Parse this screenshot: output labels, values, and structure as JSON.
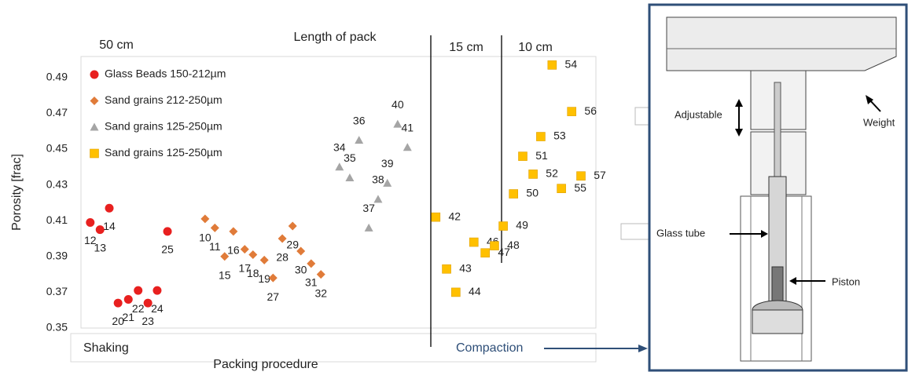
{
  "chart_data": {
    "type": "scatter",
    "title": "Length of pack",
    "group_labels": [
      "50 cm",
      "15 cm",
      "10 cm"
    ],
    "procedures": [
      "Shaking",
      "Compaction"
    ],
    "xlabel": "Packing procedure",
    "ylabel": "Porosity [frac]",
    "xlim": [
      0,
      100
    ],
    "ylim": [
      0.35,
      0.5
    ],
    "yticks": [
      0.35,
      0.37,
      0.39,
      0.41,
      0.43,
      0.45,
      0.47,
      0.49
    ],
    "series": [
      {
        "name": "Glass Beads 150-212µm",
        "color": "#e8201f",
        "marker": "circle",
        "x": [
          1.8,
          3.7,
          5.5,
          7.2,
          9.2,
          11.1,
          13.0,
          14.8,
          16.8
        ],
        "values": [
          0.409,
          0.405,
          0.417,
          0.364,
          0.366,
          0.371,
          0.364,
          0.371,
          0.404
        ],
        "labels": [
          "12",
          "13",
          "14",
          "20",
          "21",
          "22",
          "23",
          "24",
          "25"
        ]
      },
      {
        "name": "Sand grains 212-250µm",
        "color": "#e07b39",
        "marker": "diamond",
        "x": [
          24.1,
          26.0,
          27.9,
          29.6,
          31.8,
          33.4,
          35.6,
          37.3,
          39.1,
          41.1,
          42.7,
          44.7,
          46.6
        ],
        "values": [
          0.411,
          0.406,
          0.39,
          0.404,
          0.394,
          0.391,
          0.388,
          0.378,
          0.4,
          0.407,
          0.393,
          0.386,
          0.38
        ],
        "labels": [
          "10",
          "11",
          "15",
          "16",
          "17",
          "18",
          "19",
          "27",
          "28",
          "29",
          "30",
          "31",
          "32"
        ]
      },
      {
        "name": "Sand grains 125-250µm",
        "color": "#a5a5a5",
        "marker": "triangle",
        "x": [
          50.2,
          52.2,
          54.0,
          55.9,
          57.7,
          59.5,
          61.5,
          63.4
        ],
        "values": [
          0.44,
          0.434,
          0.455,
          0.406,
          0.422,
          0.431,
          0.464,
          0.451
        ],
        "labels": [
          "34",
          "35",
          "36",
          "37",
          "38",
          "39",
          "40",
          "41"
        ]
      },
      {
        "name": "Sand grains 125-250µm",
        "color": "#ffc000",
        "marker": "square",
        "x": [
          68.9,
          71.0,
          72.8,
          76.3,
          78.5,
          80.3,
          82.0,
          84.0,
          85.8,
          87.8,
          89.3,
          91.5,
          93.3,
          95.3,
          97.1
        ],
        "values": [
          0.412,
          0.383,
          0.37,
          0.398,
          0.392,
          0.396,
          0.407,
          0.425,
          0.446,
          0.436,
          0.457,
          0.497,
          0.428,
          0.471,
          0.435
        ],
        "labels": [
          "42",
          "43",
          "44",
          "46",
          "47",
          "48",
          "49",
          "50",
          "51",
          "52",
          "53",
          "54",
          "55",
          "56",
          "57"
        ]
      }
    ]
  },
  "diagram": {
    "labels": [
      "Adjustable",
      "Weight",
      "Glass tube",
      "Piston"
    ]
  }
}
